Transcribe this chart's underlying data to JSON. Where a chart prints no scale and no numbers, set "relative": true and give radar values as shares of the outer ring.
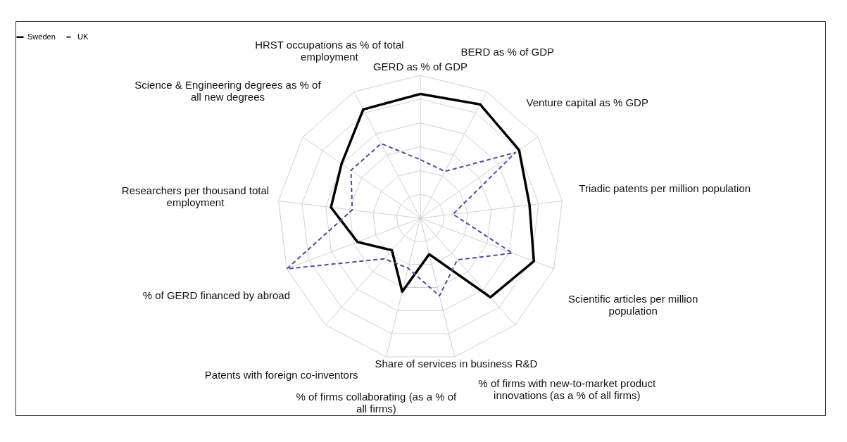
{
  "chart_data": {
    "type": "radar",
    "relative": true,
    "grid": true,
    "legend": "top",
    "categories": [
      "GERD as % of GDP",
      "BERD as % of GDP",
      "Venture capital as % GDP",
      "Triadic patents per million population",
      "Scientific articles per million population",
      "% of firms with new-to-market product innovations (as a % of all firms)",
      "Share of services in business R&D",
      "% of firms collaborating (as a % of all firms)",
      "Patents with foreign co-inventors",
      "% of GERD financed by abroad",
      "Researchers per thousand total employment",
      "Science & Engineering degrees as % of all new degrees",
      "HRST occupations as % of total employment"
    ],
    "series": [
      {
        "name": "Sweden",
        "color": "#000000",
        "line_style": "solid",
        "values": [
          0.87,
          0.9,
          0.84,
          0.77,
          0.85,
          0.74,
          0.26,
          0.53,
          0.3,
          0.47,
          0.63,
          0.67,
          0.86
        ]
      },
      {
        "name": "UK",
        "color": "#4a4ab0",
        "line_style": "dashed",
        "values": [
          0.41,
          0.37,
          0.81,
          0.23,
          0.69,
          0.39,
          0.56,
          0.36,
          0.38,
          1.0,
          0.48,
          0.59,
          0.59
        ]
      }
    ]
  }
}
